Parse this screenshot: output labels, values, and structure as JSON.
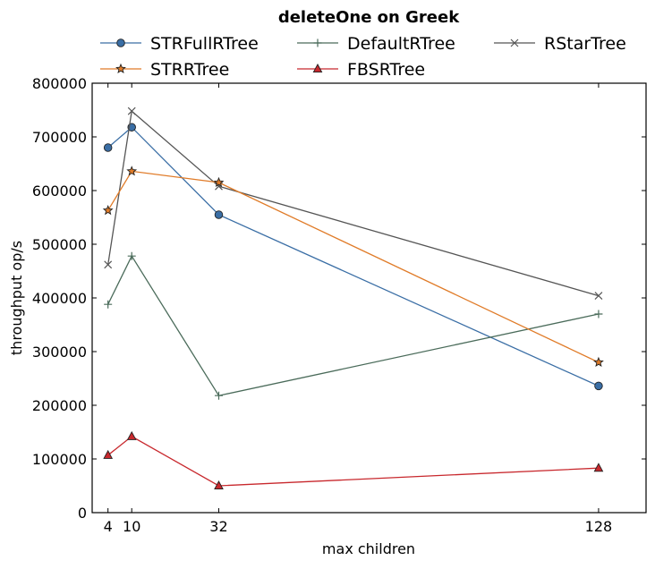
{
  "chart_data": {
    "type": "line",
    "title": "deleteOne on Greek",
    "xlabel": "max children",
    "ylabel": "throughput op/s",
    "x": [
      4,
      10,
      32,
      128
    ],
    "xlim": [
      0,
      140
    ],
    "ylim": [
      0,
      800000
    ],
    "xticks": [
      "4",
      "10",
      "32",
      "128"
    ],
    "yticks": [
      "0",
      "100000",
      "200000",
      "300000",
      "400000",
      "500000",
      "600000",
      "700000",
      "800000"
    ],
    "grid": false,
    "legend_position": "top",
    "series": [
      {
        "name": "STRFullRTree",
        "values": [
          680000,
          718000,
          555000,
          236000
        ],
        "color": "#3a6ea5",
        "marker": "circle"
      },
      {
        "name": "DefaultRTree",
        "values": [
          388000,
          478000,
          218000,
          370000
        ],
        "color": "#4a6b5a",
        "marker": "plus"
      },
      {
        "name": "RStarTree",
        "values": [
          462000,
          748000,
          608000,
          404000
        ],
        "color": "#555555",
        "marker": "x"
      },
      {
        "name": "STRRTree",
        "values": [
          563000,
          636000,
          615000,
          280000
        ],
        "color": "#e07b28",
        "marker": "star"
      },
      {
        "name": "FBSRTree",
        "values": [
          107000,
          142000,
          50000,
          83000
        ],
        "color": "#c8282d",
        "marker": "triangle"
      }
    ]
  }
}
